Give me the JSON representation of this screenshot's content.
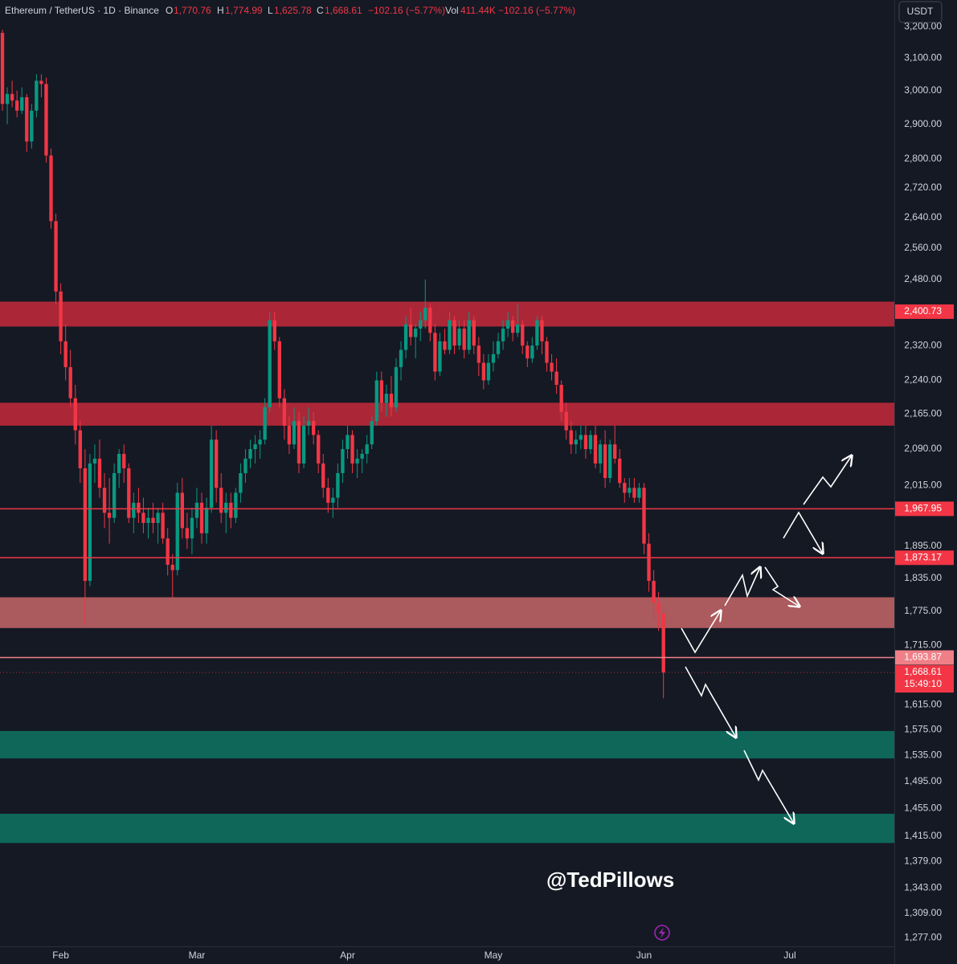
{
  "chart_data": {
    "type": "candlestick",
    "header": {
      "symbol": "Ethereum / TetherUS · 1D · Binance",
      "o": "O",
      "open": "1,770.76",
      "h": "H",
      "high": "1,774.99",
      "l": "L",
      "low": "1,625.78",
      "c": "C",
      "close": "1,668.61",
      "change": "−102.16 (−5.77%)",
      "vol": "Vol",
      "volume": "411.44K",
      "change2": "−102.16 (−5.77%)"
    },
    "currency": "USDT",
    "watermark": "@TedPillows",
    "log_scale": true,
    "grid": false,
    "up_color": "#089981",
    "down_color": "#f23645",
    "ylim": [
      1266,
      3287
    ],
    "yticks": [
      {
        "value": 3200,
        "label": "3,200.00"
      },
      {
        "value": 3100,
        "label": "3,100.00"
      },
      {
        "value": 3000,
        "label": "3,000.00"
      },
      {
        "value": 2900,
        "label": "2,900.00"
      },
      {
        "value": 2800,
        "label": "2,800.00"
      },
      {
        "value": 2720,
        "label": "2,720.00"
      },
      {
        "value": 2640,
        "label": "2,640.00"
      },
      {
        "value": 2560,
        "label": "2,560.00"
      },
      {
        "value": 2480,
        "label": "2,480.00"
      },
      {
        "value": 2320,
        "label": "2,320.00"
      },
      {
        "value": 2240,
        "label": "2,240.00"
      },
      {
        "value": 2165,
        "label": "2,165.00"
      },
      {
        "value": 2090,
        "label": "2,090.00"
      },
      {
        "value": 2015,
        "label": "2,015.00"
      },
      {
        "value": 1895,
        "label": "1,895.00"
      },
      {
        "value": 1835,
        "label": "1,835.00"
      },
      {
        "value": 1775,
        "label": "1,775.00"
      },
      {
        "value": 1715,
        "label": "1,715.00"
      },
      {
        "value": 1615,
        "label": "1,615.00"
      },
      {
        "value": 1575,
        "label": "1,575.00"
      },
      {
        "value": 1535,
        "label": "1,535.00"
      },
      {
        "value": 1495,
        "label": "1,495.00"
      },
      {
        "value": 1455,
        "label": "1,455.00"
      },
      {
        "value": 1415,
        "label": "1,415.00"
      },
      {
        "value": 1379,
        "label": "1,379.00"
      },
      {
        "value": 1343,
        "label": "1,343.00"
      },
      {
        "value": 1309,
        "label": "1,309.00"
      },
      {
        "value": 1277,
        "label": "1,277.00"
      }
    ],
    "categories": [
      null,
      null,
      null,
      null,
      null,
      null,
      null,
      null,
      null,
      null,
      null,
      null,
      "Feb",
      null,
      null,
      null,
      null,
      null,
      null,
      null,
      null,
      null,
      null,
      null,
      null,
      null,
      null,
      null,
      null,
      null,
      null,
      null,
      null,
      null,
      null,
      null,
      null,
      null,
      null,
      null,
      "Mar",
      null,
      null,
      null,
      null,
      null,
      null,
      null,
      null,
      null,
      null,
      null,
      null,
      null,
      null,
      null,
      null,
      null,
      null,
      null,
      null,
      null,
      null,
      null,
      null,
      null,
      null,
      null,
      null,
      null,
      null,
      "Apr",
      null,
      null,
      null,
      null,
      null,
      null,
      null,
      null,
      null,
      null,
      null,
      null,
      null,
      null,
      null,
      null,
      null,
      null,
      null,
      null,
      null,
      null,
      null,
      null,
      null,
      null,
      null,
      null,
      null,
      "May",
      null,
      null,
      null,
      null,
      null,
      null,
      null,
      null,
      null,
      null,
      null,
      null,
      null,
      null,
      null,
      null,
      null,
      null,
      null,
      null,
      null,
      null,
      null,
      null,
      null,
      null,
      null,
      null,
      null,
      null,
      "Jun",
      null,
      null,
      null,
      null,
      null,
      null,
      null,
      null,
      null,
      null,
      null,
      null,
      null,
      null,
      null,
      null,
      null,
      null,
      null,
      null,
      null,
      null,
      null,
      null,
      null,
      null,
      null,
      null,
      null,
      "Jul",
      null,
      null,
      null,
      null,
      null,
      null,
      null,
      null,
      null,
      null,
      null,
      null,
      null,
      null,
      null,
      null,
      null,
      null,
      null,
      null,
      null
    ],
    "open": [
      3180,
      2960,
      2990,
      2970,
      2940,
      2980,
      2850,
      2940,
      3030,
      3020,
      2810,
      2630,
      2450,
      2330,
      2270,
      2200,
      2130,
      2050,
      1830,
      2060,
      2070,
      2010,
      1960,
      1950,
      2040,
      2080,
      2050,
      1950,
      1980,
      1960,
      1940,
      1950,
      1940,
      1960,
      1910,
      1860,
      1850,
      2000,
      1930,
      1910,
      1950,
      1980,
      1920,
      1970,
      2110,
      2010,
      1960,
      1980,
      1950,
      2000,
      2040,
      2070,
      2090,
      2100,
      2110,
      2180,
      2380,
      2330,
      2200,
      2140,
      2100,
      2150,
      2060,
      2140,
      2150,
      2120,
      2060,
      2010,
      1980,
      1990,
      2040,
      2090,
      2120,
      2060,
      2070,
      2080,
      2100,
      2150,
      2240,
      2190,
      2210,
      2180,
      2270,
      2310,
      2370,
      2340,
      2360,
      2380,
      2410,
      2350,
      2260,
      2330,
      2310,
      2380,
      2320,
      2360,
      2310,
      2380,
      2320,
      2280,
      2240,
      2280,
      2300,
      2330,
      2360,
      2380,
      2350,
      2370,
      2320,
      2290,
      2320,
      2380,
      2330,
      2280,
      2260,
      2230,
      2170,
      2130,
      2100,
      2110,
      2120,
      2090,
      2120,
      2060,
      2100,
      2030,
      2100,
      2070,
      2020,
      2000,
      2010,
      1990,
      2010,
      1900,
      1830,
      1790,
      1770.76,
      null,
      null,
      null,
      null,
      null,
      null,
      null,
      null,
      null,
      null,
      null,
      null,
      null,
      null,
      null,
      null,
      null,
      null,
      null,
      null,
      null,
      null,
      null,
      null,
      null,
      null,
      null,
      null,
      null,
      null,
      null,
      null,
      null,
      null,
      null,
      null,
      null,
      null,
      null,
      null,
      null,
      null,
      null,
      null,
      null,
      null,
      null
    ],
    "high": [
      3190,
      3010,
      3030,
      3000,
      3010,
      2990,
      2960,
      3050,
      3050,
      3040,
      2830,
      2650,
      2470,
      2370,
      2310,
      2230,
      2150,
      2090,
      2080,
      2100,
      2110,
      2040,
      2030,
      2060,
      2090,
      2100,
      2060,
      2000,
      2010,
      1990,
      1970,
      1980,
      1970,
      1980,
      1930,
      1880,
      2020,
      2030,
      1960,
      1970,
      2010,
      2000,
      1990,
      2140,
      2130,
      2040,
      2000,
      2000,
      2010,
      2060,
      2090,
      2110,
      2120,
      2130,
      2200,
      2400,
      2400,
      2340,
      2220,
      2160,
      2180,
      2170,
      2160,
      2180,
      2170,
      2130,
      2080,
      2030,
      2010,
      2060,
      2110,
      2140,
      2130,
      2090,
      2090,
      2120,
      2160,
      2260,
      2260,
      2230,
      2250,
      2290,
      2330,
      2390,
      2410,
      2370,
      2400,
      2480,
      2420,
      2370,
      2350,
      2360,
      2400,
      2390,
      2380,
      2380,
      2400,
      2390,
      2340,
      2300,
      2300,
      2330,
      2350,
      2380,
      2400,
      2390,
      2420,
      2380,
      2330,
      2340,
      2390,
      2390,
      2340,
      2300,
      2290,
      2240,
      2190,
      2150,
      2130,
      2140,
      2140,
      2130,
      2140,
      2110,
      2130,
      2110,
      2140,
      2090,
      2030,
      2030,
      2030,
      2020,
      2020,
      1920,
      1850,
      1810,
      1774.99,
      null,
      null,
      null,
      null,
      null,
      null,
      null,
      null,
      null,
      null,
      null,
      null,
      null,
      null,
      null,
      null,
      null,
      null,
      null,
      null,
      null,
      null,
      null,
      null,
      null,
      null,
      null,
      null,
      null,
      null,
      null,
      null,
      null,
      null,
      null,
      null,
      null,
      null,
      null,
      null,
      null,
      null,
      null,
      null,
      null,
      null,
      null
    ],
    "low": [
      2940,
      2900,
      2950,
      2920,
      2930,
      2820,
      2830,
      2920,
      2980,
      2790,
      2610,
      2420,
      2300,
      2240,
      2180,
      2100,
      2020,
      1750,
      1820,
      2020,
      1990,
      1930,
      1900,
      1940,
      2010,
      2020,
      1940,
      1920,
      1940,
      1920,
      1910,
      1920,
      1900,
      1900,
      1840,
      1800,
      1840,
      1910,
      1890,
      1880,
      1930,
      1900,
      1900,
      1960,
      1980,
      1940,
      1920,
      1930,
      1940,
      1980,
      2020,
      2050,
      2060,
      2070,
      2100,
      2170,
      2310,
      2180,
      2110,
      2080,
      2090,
      2040,
      2050,
      2120,
      2100,
      2040,
      1990,
      1960,
      1950,
      1970,
      2020,
      2070,
      2040,
      2030,
      2040,
      2060,
      2090,
      2140,
      2170,
      2160,
      2160,
      2170,
      2240,
      2290,
      2320,
      2290,
      2330,
      2360,
      2330,
      2240,
      2250,
      2300,
      2300,
      2300,
      2310,
      2290,
      2300,
      2300,
      2250,
      2220,
      2230,
      2260,
      2290,
      2310,
      2340,
      2330,
      2340,
      2300,
      2270,
      2280,
      2310,
      2300,
      2260,
      2240,
      2210,
      2150,
      2110,
      2080,
      2080,
      2090,
      2070,
      2080,
      2050,
      2040,
      2010,
      2020,
      2060,
      2010,
      1980,
      1990,
      1980,
      1980,
      1880,
      1810,
      1760,
      1740,
      1625.78,
      null,
      null,
      null,
      null,
      null,
      null,
      null,
      null,
      null,
      null,
      null,
      null,
      null,
      null,
      null,
      null,
      null,
      null,
      null,
      null,
      null,
      null,
      null,
      null,
      null,
      null,
      null,
      null,
      null,
      null,
      null,
      null,
      null,
      null,
      null,
      null,
      null,
      null,
      null,
      null,
      null,
      null,
      null,
      null,
      null,
      null,
      null
    ],
    "close": [
      2960,
      2990,
      2970,
      2940,
      2980,
      2850,
      2940,
      3030,
      3020,
      2810,
      2630,
      2450,
      2330,
      2270,
      2200,
      2130,
      2050,
      1830,
      2060,
      2070,
      2010,
      1960,
      1950,
      2040,
      2080,
      2050,
      1950,
      1980,
      1960,
      1940,
      1950,
      1940,
      1960,
      1910,
      1860,
      1850,
      2000,
      1930,
      1910,
      1950,
      1980,
      1920,
      1970,
      2110,
      2010,
      1960,
      1980,
      1950,
      2000,
      2040,
      2070,
      2090,
      2100,
      2110,
      2180,
      2380,
      2330,
      2200,
      2140,
      2100,
      2150,
      2060,
      2140,
      2150,
      2120,
      2060,
      2010,
      1980,
      1990,
      2040,
      2090,
      2120,
      2060,
      2070,
      2080,
      2100,
      2150,
      2240,
      2190,
      2210,
      2180,
      2270,
      2310,
      2370,
      2340,
      2360,
      2380,
      2410,
      2350,
      2260,
      2330,
      2310,
      2380,
      2320,
      2360,
      2310,
      2380,
      2320,
      2280,
      2240,
      2280,
      2300,
      2330,
      2360,
      2380,
      2350,
      2370,
      2320,
      2290,
      2320,
      2380,
      2330,
      2280,
      2260,
      2230,
      2170,
      2130,
      2100,
      2110,
      2120,
      2090,
      2120,
      2060,
      2100,
      2030,
      2100,
      2070,
      2020,
      2000,
      2010,
      1990,
      2010,
      1900,
      1830,
      1790,
      1770.76,
      1668.61,
      null,
      null,
      null,
      null,
      null,
      null,
      null,
      null,
      null,
      null,
      null,
      null,
      null,
      null,
      null,
      null,
      null,
      null,
      null,
      null,
      null,
      null,
      null,
      null,
      null,
      null,
      null,
      null,
      null,
      null,
      null,
      null,
      null,
      null,
      null,
      null,
      null,
      null,
      null,
      null,
      null,
      null,
      null,
      null,
      null,
      null,
      null
    ],
    "zones": [
      {
        "low": 2365,
        "high": 2425,
        "color": "#b8283a",
        "value": 2400.73,
        "label": "2,400.73"
      },
      {
        "low": 2140,
        "high": 2190,
        "color": "#b8283a"
      },
      {
        "low": 1745,
        "high": 1800,
        "color": "#b85f63"
      },
      {
        "low": 1530,
        "high": 1573,
        "color": "#0f6e5f"
      },
      {
        "low": 1405,
        "high": 1447,
        "color": "#0f6e5f"
      }
    ],
    "levels": [
      {
        "value": 1967.95,
        "label": "1,967.95",
        "color": "#f23645"
      },
      {
        "value": 1873.17,
        "label": "1,873.17",
        "color": "#f23645"
      },
      {
        "value": 1693.87,
        "label": "1,693.87",
        "color": "#f08088"
      }
    ],
    "last_price": {
      "value": 1668.61,
      "label": "1,668.61",
      "countdown": "15:49:10"
    }
  }
}
